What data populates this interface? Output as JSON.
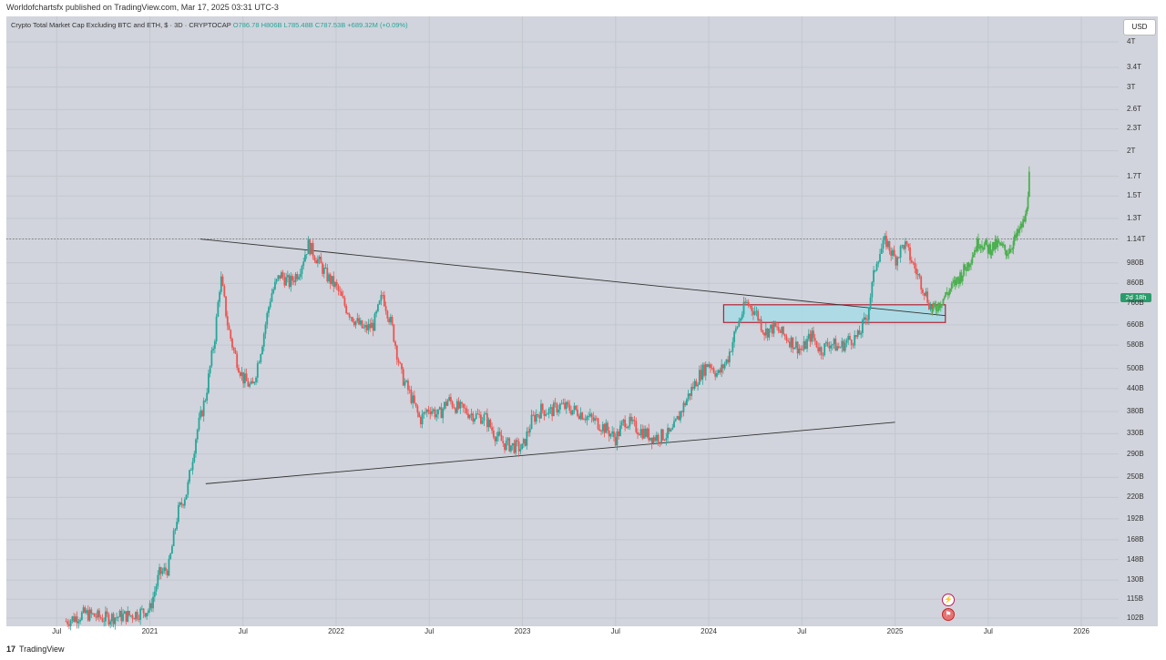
{
  "header": {
    "published": "Worldofchartsfx published on TradingView.com, Mar 17, 2025 03:31 UTC-3"
  },
  "legend": {
    "symbol": "Crypto Total Market Cap Excluding BTC and ETH, $ · 3D · CRYPTOCAP",
    "open": "O786.78",
    "high": "H806B",
    "low": "L785.48B",
    "close": "C787.53B",
    "change": "+689.32M (+0.09%)"
  },
  "currency": "USD",
  "price_tag": "2d 18h",
  "footer": {
    "brand_logo": "17",
    "brand": "TradingView"
  },
  "colors": {
    "bg": "#d1d4dc",
    "up": "#26a69a",
    "down": "#ef5350",
    "projection": "#4caf50",
    "zone": "#a8dbe6",
    "zone_border": "#b22234"
  },
  "chart_data": {
    "type": "candlestick",
    "title": "Crypto Total Market Cap Excluding BTC and ETH, $ · 3D · CRYPTOCAP",
    "scale": "log",
    "ylim": [
      100,
      4000
    ],
    "y_ticks": [
      {
        "label": "4T",
        "value": 4000
      },
      {
        "label": "3.4T",
        "value": 3400
      },
      {
        "label": "3T",
        "value": 3000
      },
      {
        "label": "2.6T",
        "value": 2600
      },
      {
        "label": "2.3T",
        "value": 2300
      },
      {
        "label": "2T",
        "value": 2000
      },
      {
        "label": "1.7T",
        "value": 1700
      },
      {
        "label": "1.5T",
        "value": 1500
      },
      {
        "label": "1.3T",
        "value": 1300
      },
      {
        "label": "1.14T",
        "value": 1140
      },
      {
        "label": "980B",
        "value": 980
      },
      {
        "label": "860B",
        "value": 860
      },
      {
        "label": "760B",
        "value": 760
      },
      {
        "label": "660B",
        "value": 660
      },
      {
        "label": "580B",
        "value": 580
      },
      {
        "label": "500B",
        "value": 500
      },
      {
        "label": "440B",
        "value": 440
      },
      {
        "label": "380B",
        "value": 380
      },
      {
        "label": "330B",
        "value": 330
      },
      {
        "label": "290B",
        "value": 290
      },
      {
        "label": "250B",
        "value": 250
      },
      {
        "label": "220B",
        "value": 220
      },
      {
        "label": "192B",
        "value": 192
      },
      {
        "label": "168B",
        "value": 168
      },
      {
        "label": "148B",
        "value": 148
      },
      {
        "label": "130B",
        "value": 130
      },
      {
        "label": "115B",
        "value": 115
      },
      {
        "label": "102B",
        "value": 102
      }
    ],
    "x_ticks": [
      {
        "label": "Jul",
        "t": 2020.5
      },
      {
        "label": "2021",
        "t": 2021.0
      },
      {
        "label": "Jul",
        "t": 2021.5
      },
      {
        "label": "2022",
        "t": 2022.0
      },
      {
        "label": "Jul",
        "t": 2022.5
      },
      {
        "label": "2023",
        "t": 2023.0
      },
      {
        "label": "Jul",
        "t": 2023.5
      },
      {
        "label": "2024",
        "t": 2024.0
      },
      {
        "label": "Jul",
        "t": 2024.5
      },
      {
        "label": "2025",
        "t": 2025.0
      },
      {
        "label": "Jul",
        "t": 2025.5
      },
      {
        "label": "2026",
        "t": 2026.0
      }
    ],
    "price_path": [
      [
        2020.55,
        100
      ],
      [
        2020.65,
        105
      ],
      [
        2020.75,
        102
      ],
      [
        2020.9,
        104
      ],
      [
        2021.0,
        108
      ],
      [
        2021.05,
        135
      ],
      [
        2021.1,
        140
      ],
      [
        2021.15,
        200
      ],
      [
        2021.2,
        230
      ],
      [
        2021.25,
        330
      ],
      [
        2021.3,
        420
      ],
      [
        2021.35,
        620
      ],
      [
        2021.38,
        900
      ],
      [
        2021.42,
        650
      ],
      [
        2021.45,
        560
      ],
      [
        2021.5,
        470
      ],
      [
        2021.55,
        440
      ],
      [
        2021.6,
        580
      ],
      [
        2021.65,
        800
      ],
      [
        2021.7,
        910
      ],
      [
        2021.75,
        860
      ],
      [
        2021.8,
        930
      ],
      [
        2021.85,
        1100
      ],
      [
        2021.9,
        1000
      ],
      [
        2021.95,
        900
      ],
      [
        2022.0,
        840
      ],
      [
        2022.05,
        740
      ],
      [
        2022.1,
        680
      ],
      [
        2022.15,
        640
      ],
      [
        2022.2,
        660
      ],
      [
        2022.25,
        800
      ],
      [
        2022.3,
        650
      ],
      [
        2022.35,
        480
      ],
      [
        2022.4,
        420
      ],
      [
        2022.45,
        360
      ],
      [
        2022.5,
        390
      ],
      [
        2022.55,
        370
      ],
      [
        2022.6,
        410
      ],
      [
        2022.65,
        390
      ],
      [
        2022.7,
        380
      ],
      [
        2022.75,
        370
      ],
      [
        2022.8,
        365
      ],
      [
        2022.85,
        330
      ],
      [
        2022.9,
        310
      ],
      [
        2023.0,
        300
      ],
      [
        2023.05,
        360
      ],
      [
        2023.1,
        385
      ],
      [
        2023.15,
        380
      ],
      [
        2023.2,
        395
      ],
      [
        2023.3,
        380
      ],
      [
        2023.4,
        355
      ],
      [
        2023.45,
        340
      ],
      [
        2023.5,
        320
      ],
      [
        2023.55,
        360
      ],
      [
        2023.6,
        345
      ],
      [
        2023.7,
        322
      ],
      [
        2023.8,
        330
      ],
      [
        2023.85,
        380
      ],
      [
        2023.9,
        430
      ],
      [
        2023.95,
        480
      ],
      [
        2024.0,
        520
      ],
      [
        2024.05,
        480
      ],
      [
        2024.1,
        530
      ],
      [
        2024.15,
        650
      ],
      [
        2024.2,
        760
      ],
      [
        2024.25,
        720
      ],
      [
        2024.3,
        630
      ],
      [
        2024.35,
        650
      ],
      [
        2024.4,
        620
      ],
      [
        2024.45,
        590
      ],
      [
        2024.5,
        560
      ],
      [
        2024.55,
        620
      ],
      [
        2024.6,
        560
      ],
      [
        2024.65,
        590
      ],
      [
        2024.7,
        570
      ],
      [
        2024.75,
        600
      ],
      [
        2024.8,
        610
      ],
      [
        2024.85,
        700
      ],
      [
        2024.9,
        1000
      ],
      [
        2024.95,
        1130
      ],
      [
        2025.0,
        1000
      ],
      [
        2025.05,
        1110
      ],
      [
        2025.1,
        960
      ],
      [
        2025.15,
        840
      ],
      [
        2025.2,
        720
      ]
    ],
    "projection_path": [
      [
        2025.2,
        720
      ],
      [
        2025.3,
        830
      ],
      [
        2025.38,
        950
      ],
      [
        2025.45,
        1130
      ],
      [
        2025.5,
        1070
      ],
      [
        2025.55,
        1100
      ],
      [
        2025.6,
        1050
      ],
      [
        2025.65,
        1150
      ],
      [
        2025.7,
        1300
      ],
      [
        2025.72,
        1700
      ]
    ],
    "trendlines": [
      {
        "name": "resistance",
        "from": [
          2021.27,
          1140
        ],
        "to": [
          2025.27,
          700
        ]
      },
      {
        "name": "support",
        "from": [
          2021.3,
          240
        ],
        "to": [
          2025.0,
          355
        ]
      }
    ],
    "horizontal_level": 1140,
    "zone": {
      "t_from": 2024.08,
      "t_to": 2025.27,
      "low": 670,
      "high": 750
    },
    "x_range": [
      2020.23,
      2026.2
    ]
  }
}
